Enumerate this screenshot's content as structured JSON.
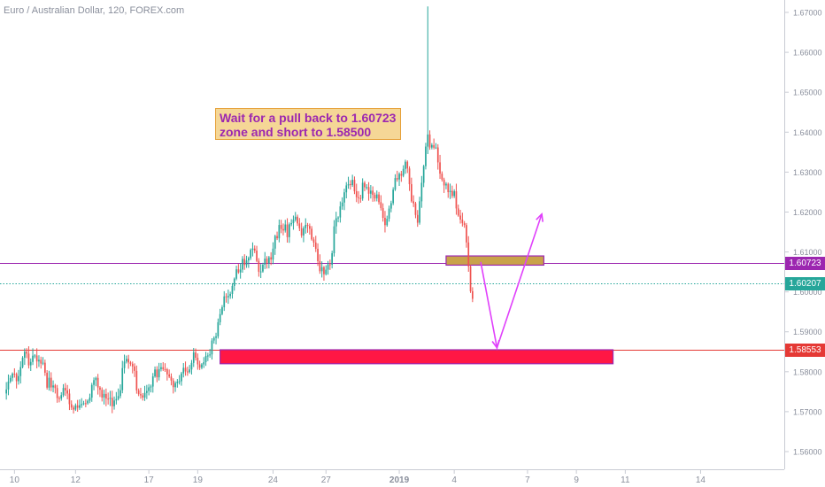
{
  "chart_data": {
    "type": "candlestick",
    "title": "Euro / Australian Dollar, 120, FOREX.com",
    "ylim": [
      1.555,
      1.672
    ],
    "y_ticks": [
      "1.56000",
      "1.57000",
      "1.58000",
      "1.59000",
      "1.60000",
      "1.61000",
      "1.62000",
      "1.63000",
      "1.64000",
      "1.65000",
      "1.66000",
      "1.67000"
    ],
    "x_ticks": [
      {
        "label": "10",
        "idx": 4
      },
      {
        "label": "12",
        "idx": 34
      },
      {
        "label": "17",
        "idx": 70
      },
      {
        "label": "19",
        "idx": 94
      },
      {
        "label": "24",
        "idx": 131
      },
      {
        "label": "27",
        "idx": 157
      },
      {
        "label": "2019",
        "idx": 193
      },
      {
        "label": "4",
        "idx": 220
      },
      {
        "label": "7",
        "idx": 256
      },
      {
        "label": "9",
        "idx": 280
      },
      {
        "label": "11",
        "idx": 304
      },
      {
        "label": "14",
        "idx": 341
      }
    ],
    "anchors": [
      {
        "i": 0,
        "p": 1.5745
      },
      {
        "i": 8,
        "p": 1.5865
      },
      {
        "i": 20,
        "p": 1.5805
      },
      {
        "i": 32,
        "p": 1.572
      },
      {
        "i": 44,
        "p": 1.577
      },
      {
        "i": 52,
        "p": 1.5735
      },
      {
        "i": 60,
        "p": 1.583
      },
      {
        "i": 66,
        "p": 1.576
      },
      {
        "i": 76,
        "p": 1.581
      },
      {
        "i": 86,
        "p": 1.58
      },
      {
        "i": 96,
        "p": 1.5855
      },
      {
        "i": 100,
        "p": 1.586
      },
      {
        "i": 112,
        "p": 1.606
      },
      {
        "i": 120,
        "p": 1.61
      },
      {
        "i": 126,
        "p": 1.608
      },
      {
        "i": 134,
        "p": 1.615
      },
      {
        "i": 142,
        "p": 1.621
      },
      {
        "i": 150,
        "p": 1.614
      },
      {
        "i": 156,
        "p": 1.6055
      },
      {
        "i": 162,
        "p": 1.617
      },
      {
        "i": 168,
        "p": 1.63
      },
      {
        "i": 174,
        "p": 1.626
      },
      {
        "i": 182,
        "p": 1.624
      },
      {
        "i": 186,
        "p": 1.6205
      },
      {
        "i": 196,
        "p": 1.633
      },
      {
        "i": 202,
        "p": 1.62
      },
      {
        "i": 207,
        "p": 1.6395
      },
      {
        "i": 212,
        "p": 1.633
      },
      {
        "i": 218,
        "p": 1.627
      },
      {
        "i": 224,
        "p": 1.618
      },
      {
        "i": 229,
        "p": 1.6015
      }
    ],
    "spikes": [
      {
        "i": 207,
        "high": 1.6715
      }
    ],
    "horizontal_lines": [
      {
        "price": 1.60723,
        "color": "#9c27b0",
        "style": "solid",
        "label": "1.60723"
      },
      {
        "price": 1.60207,
        "color": "#26a69a",
        "style": "dotted",
        "label": "1.60207"
      },
      {
        "price": 1.58553,
        "color": "#e53935",
        "style": "solid",
        "label": "1.58553"
      }
    ],
    "zones": [
      {
        "i1": 216,
        "i2": 264,
        "top": 1.609,
        "bottom": 1.6067,
        "fill": "#c9a24a",
        "stroke": "#9c27b0"
      },
      {
        "i1": 105,
        "i2": 298,
        "top": 1.5855,
        "bottom": 1.582,
        "fill": "#ff1744",
        "stroke": "#9c27b0"
      }
    ],
    "projection": {
      "color": "#e040fb",
      "points": [
        {
          "i": 233,
          "p": 1.6075
        },
        {
          "i": 241,
          "p": 1.586
        },
        {
          "i": 263,
          "p": 1.6195
        }
      ]
    },
    "annotation": {
      "line1": "Wait for a pull back to 1.60723",
      "line2": "zone and short to 1.58500"
    }
  }
}
